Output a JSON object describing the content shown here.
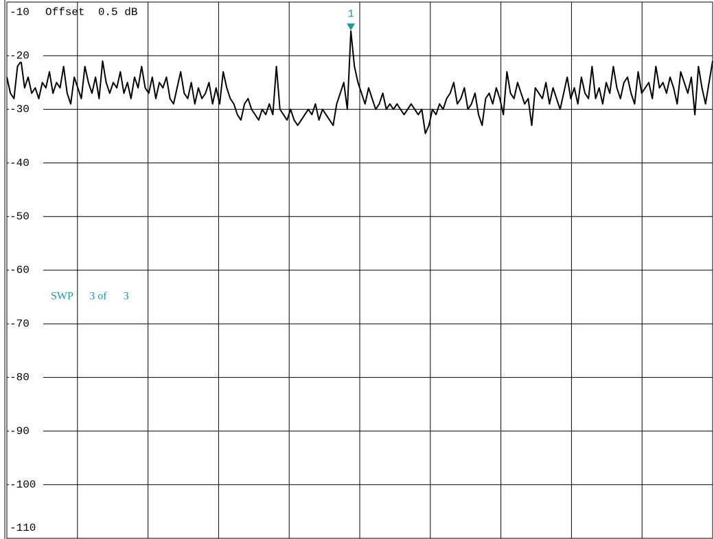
{
  "chart_data": {
    "type": "line",
    "annotations": {
      "offset": "Offset  0.5 dB",
      "sweep": "SWP      3 of      3",
      "marker": "1"
    },
    "ylim": [
      -110,
      -10
    ],
    "yticks": [
      -10,
      -20,
      -30,
      -40,
      -50,
      -60,
      -70,
      -80,
      -90,
      -100,
      -110
    ],
    "x_divisions": 10,
    "grid": true,
    "series": [
      {
        "color": "#000000",
        "values": [
          -24,
          -27,
          -28,
          -22,
          -21,
          -26,
          -24,
          -27,
          -26,
          -28,
          -25,
          -26,
          -23,
          -27,
          -25,
          -26,
          -22,
          -27,
          -29,
          -24,
          -26,
          -28,
          -22,
          -25,
          -27,
          -24,
          -28,
          -21,
          -25,
          -27,
          -25,
          -26,
          -23,
          -27,
          -25,
          -28,
          -24,
          -26,
          -22,
          -26,
          -27,
          -24,
          -28,
          -25,
          -26,
          -24,
          -28,
          -29,
          -26,
          -23,
          -27,
          -28,
          -25,
          -29,
          -26,
          -28,
          -27,
          -25,
          -29,
          -26,
          -29,
          -23,
          -26,
          -28,
          -29,
          -31,
          -32,
          -29,
          -28,
          -30,
          -31,
          -32,
          -30,
          -31,
          -29,
          -31,
          -22,
          -30,
          -31,
          -32,
          -30,
          -32,
          -33,
          -32,
          -31,
          -30,
          -31,
          -29,
          -32,
          -30,
          -31,
          -32,
          -33,
          -29,
          -27,
          -25,
          -30,
          -15.4,
          -22,
          -25,
          -27,
          -29,
          -26,
          -28,
          -30,
          -29,
          -27,
          -30,
          -29,
          -30,
          -29,
          -30,
          -31,
          -30,
          -29,
          -30,
          -31,
          -30,
          -34.5,
          -33,
          -30,
          -31,
          -29,
          -30,
          -28,
          -27,
          -25,
          -29,
          -28,
          -26,
          -30,
          -29,
          -27,
          -31,
          -33,
          -28,
          -27,
          -29,
          -26,
          -28,
          -31,
          -23,
          -27,
          -28,
          -25,
          -27,
          -29,
          -28,
          -33,
          -26,
          -27,
          -28,
          -25,
          -29,
          -26,
          -28,
          -30,
          -27,
          -24,
          -28,
          -26,
          -29,
          -24,
          -27,
          -28,
          -22,
          -28,
          -26,
          -29,
          -25,
          -27,
          -22,
          -26,
          -28,
          -25,
          -24,
          -27,
          -29,
          -23,
          -27,
          -26,
          -25,
          -28,
          -22,
          -26,
          -25,
          -27,
          -24,
          -26,
          -29,
          -23,
          -25,
          -27,
          -24,
          -31,
          -22,
          -26,
          -29,
          -25,
          -21
        ]
      }
    ],
    "marker_color": "#1a9a9a"
  }
}
